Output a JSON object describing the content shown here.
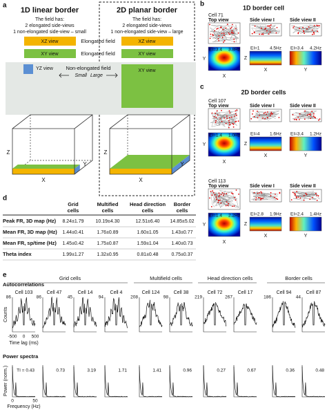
{
  "panel_a": {
    "label": "a",
    "columns": [
      {
        "title": "1D linear border",
        "desc": [
          "The field has:",
          "2 elongated side-views",
          "1 non-elongated side-view – small"
        ]
      },
      {
        "title": "2D planar border",
        "desc": [
          "The field has:",
          "2 elongated side-views",
          "1 non-elongated side-view – large"
        ]
      }
    ],
    "views": {
      "xz": "XZ view",
      "xy": "XY view",
      "yz": "YZ view"
    },
    "elongated": "Elongated field",
    "non_elongated": "Non-elongated field",
    "small": "Small",
    "large": "Large",
    "axes": {
      "x": "X",
      "y": "Y",
      "z": "Z"
    }
  },
  "view_titles": [
    "Top view",
    "Side view I",
    "Side view II"
  ],
  "panel_b": {
    "label": "b",
    "title": "1D border cell",
    "cells": [
      {
        "name": "Cell 71",
        "maps": [
          {
            "ei": "EI=3.4",
            "rate": "3.8Hz"
          },
          {
            "ei": "EI=1",
            "rate": "4.5Hz"
          },
          {
            "ei": "EI=3.4",
            "rate": "4.2Hz"
          }
        ]
      }
    ]
  },
  "panel_c": {
    "label": "c",
    "title": "2D border cells",
    "cells": [
      {
        "name": "Cell 107",
        "maps": [
          {
            "ei": "EI=1.4",
            "rate": "1.0Hz"
          },
          {
            "ei": "EI=4",
            "rate": "1.6Hz"
          },
          {
            "ei": "EI=3.4",
            "rate": "1.2Hz"
          }
        ]
      },
      {
        "name": "Cell 113",
        "maps": [
          {
            "ei": "EI=1.4",
            "rate": "2.2Hz"
          },
          {
            "ei": "EI=2.8",
            "rate": "1.9Hz"
          },
          {
            "ei": "EI=2.4",
            "rate": "1.4Hz"
          }
        ]
      }
    ]
  },
  "panel_d": {
    "label": "d",
    "columns": [
      [
        "Grid",
        "cells"
      ],
      [
        "Multified",
        "cells"
      ],
      [
        "Head direction",
        "cells"
      ],
      [
        "Border",
        "cells"
      ]
    ],
    "rows": [
      {
        "label": "Peak FR, 3D map (Hz)",
        "values": [
          "8.24±1.79",
          "10.19±4.30",
          "12.51±6.40",
          "14.85±5.02"
        ]
      },
      {
        "label": "Mean FR, 3D map (Hz)",
        "values": [
          "1.44±0.41",
          "1.76±0.89",
          "1.60±1.05",
          "1.43±0.77"
        ]
      },
      {
        "label": "Mean FR, sp/time (Hz)",
        "values": [
          "1.45±0.42",
          "1.75±0.87",
          "1.59±1.04",
          "1.40±0.73"
        ]
      },
      {
        "label": "Theta index",
        "values": [
          "1.99±1.27",
          "1.32±0.95",
          "0.81±0.48",
          "0.75±0.37"
        ]
      }
    ]
  },
  "panel_e": {
    "label": "e",
    "autocorr": "Autocorrelations",
    "power": "Power spectra",
    "counts": "Counts",
    "time_ticks": [
      "-500",
      "0",
      "500"
    ],
    "time_label": "Time lag (ms)",
    "power_label": "Power (norm.)",
    "freq_ticks": [
      "0",
      "50"
    ],
    "freq_label": "Frequency (Hz)",
    "groups": [
      {
        "name": "Grid cells",
        "cells": [
          {
            "name": "Cell 103",
            "ymax": "86",
            "ti": "TI = 0.43"
          },
          {
            "name": "Cell 47",
            "ymax": "86",
            "ti": "0.73"
          },
          {
            "name": "Cell 14",
            "ymax": "45",
            "ti": "3.19"
          },
          {
            "name": "Cell 4",
            "ymax": "94",
            "ti": "1.71"
          }
        ]
      },
      {
        "name": "Multifield cells",
        "cells": [
          {
            "name": "Cell 124",
            "ymax": "208",
            "ti": "1.41"
          },
          {
            "name": "Cell 38",
            "ymax": "98",
            "ti": "0.96"
          }
        ]
      },
      {
        "name": "Head direction cells",
        "cells": [
          {
            "name": "Cell 72",
            "ymax": "219",
            "ti": "0.27"
          },
          {
            "name": "Cell 17",
            "ymax": "267",
            "ti": "0.67"
          }
        ]
      },
      {
        "name": "Border cells",
        "cells": [
          {
            "name": "Cell 94",
            "ymax": "186",
            "ti": "0.36"
          },
          {
            "name": "Cell 87",
            "ymax": "44",
            "ti": "0.48"
          }
        ]
      }
    ]
  }
}
